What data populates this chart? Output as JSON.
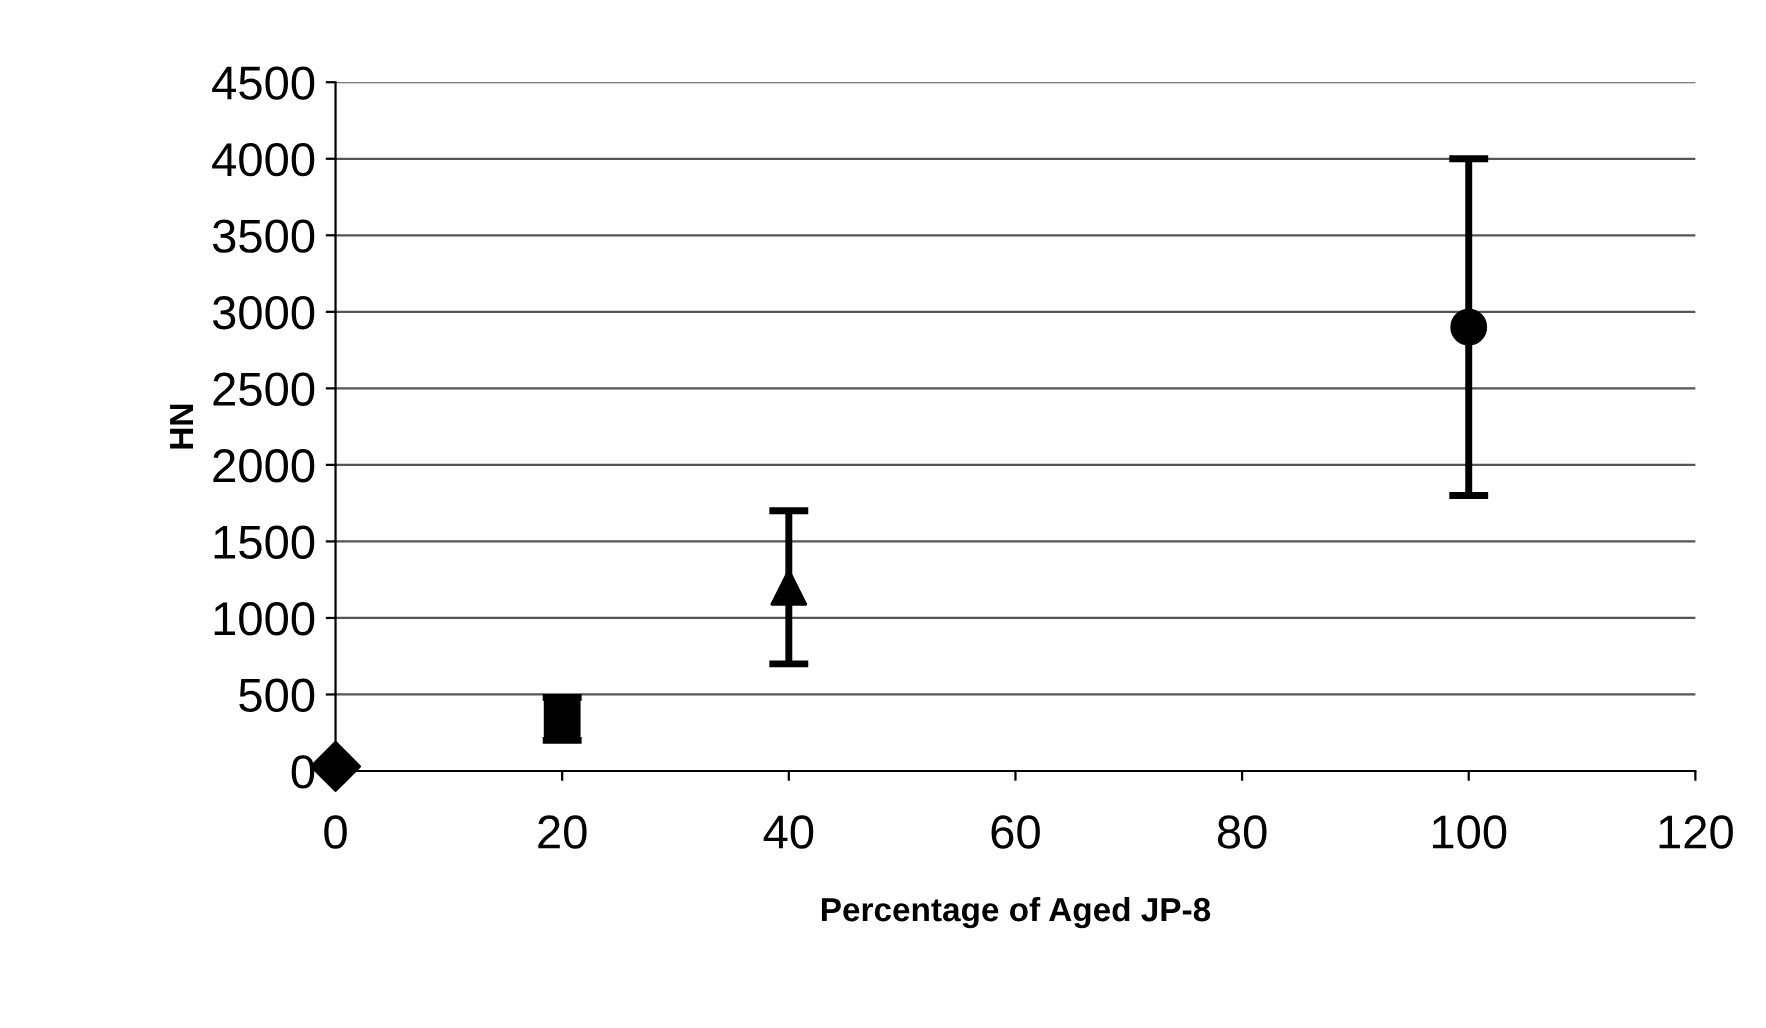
{
  "chart_data": {
    "type": "scatter",
    "xlabel": "Percentage of Aged JP-8",
    "ylabel": "HN",
    "series": [
      {
        "color": "#000000",
        "marker": "diamond",
        "x": [
          0
        ],
        "values": [
          30
        ],
        "errors": [
          null
        ]
      },
      {
        "color": "#000000",
        "marker": "square",
        "x": [
          20
        ],
        "values": [
          340
        ],
        "errors": [
          140
        ]
      },
      {
        "color": "#000000",
        "marker": "triangle",
        "x": [
          40
        ],
        "values": [
          1200
        ],
        "errors": [
          500
        ]
      },
      {
        "color": "#000000",
        "marker": "circle",
        "x": [
          100
        ],
        "values": [
          2900
        ],
        "errors": [
          1100
        ]
      }
    ],
    "xlim": [
      0,
      120
    ],
    "xticks": [
      0,
      20,
      40,
      60,
      80,
      100,
      120
    ],
    "ylim": [
      0,
      4500
    ],
    "yticks": [
      0,
      500,
      1000,
      1500,
      2000,
      2500,
      3000,
      3500,
      4000,
      4500
    ],
    "grid": "y"
  }
}
